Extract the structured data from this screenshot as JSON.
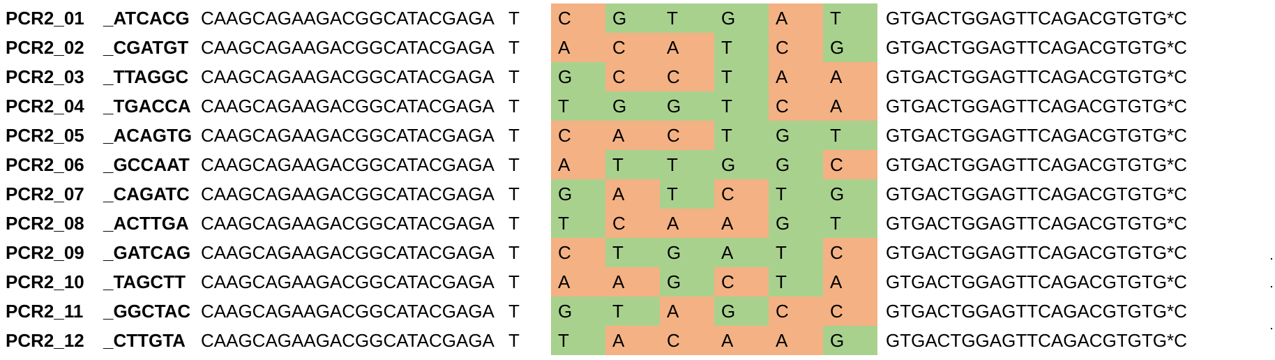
{
  "colors": {
    "match": "#a9d18e",
    "mismatch": "#f4b183"
  },
  "rows": [
    {
      "name": "PCR2_01",
      "index": "_ATCACG",
      "adapter5": "CAAGCAGAAGACGGCATACGAGA",
      "t": "T",
      "bases": [
        "C",
        "G",
        "T",
        "G",
        "A",
        "T"
      ],
      "colors": [
        "mismatch",
        "match",
        "match",
        "match",
        "mismatch",
        "match"
      ],
      "adapter3": "GTGACTGGAGTTCAGACGTGTG*C"
    },
    {
      "name": "PCR2_02",
      "index": "_CGATGT",
      "adapter5": "CAAGCAGAAGACGGCATACGAGA",
      "t": "T",
      "bases": [
        "A",
        "C",
        "A",
        "T",
        "C",
        "G"
      ],
      "colors": [
        "mismatch",
        "mismatch",
        "mismatch",
        "match",
        "mismatch",
        "match"
      ],
      "adapter3": "GTGACTGGAGTTCAGACGTGTG*C"
    },
    {
      "name": "PCR2_03",
      "index": "_TTAGGC",
      "adapter5": "CAAGCAGAAGACGGCATACGAGA",
      "t": "T",
      "bases": [
        "G",
        "C",
        "C",
        "T",
        "A",
        "A"
      ],
      "colors": [
        "match",
        "mismatch",
        "mismatch",
        "match",
        "mismatch",
        "mismatch"
      ],
      "adapter3": "GTGACTGGAGTTCAGACGTGTG*C"
    },
    {
      "name": "PCR2_04",
      "index": "_TGACCA",
      "adapter5": "CAAGCAGAAGACGGCATACGAGA",
      "t": "T",
      "bases": [
        "T",
        "G",
        "G",
        "T",
        "C",
        "A"
      ],
      "colors": [
        "match",
        "match",
        "match",
        "match",
        "mismatch",
        "mismatch"
      ],
      "adapter3": "GTGACTGGAGTTCAGACGTGTG*C"
    },
    {
      "name": "PCR2_05",
      "index": "_ACAGTG",
      "adapter5": "CAAGCAGAAGACGGCATACGAGA",
      "t": "T",
      "bases": [
        "C",
        "A",
        "C",
        "T",
        "G",
        "T"
      ],
      "colors": [
        "mismatch",
        "mismatch",
        "mismatch",
        "match",
        "match",
        "match"
      ],
      "adapter3": "GTGACTGGAGTTCAGACGTGTG*C"
    },
    {
      "name": "PCR2_06",
      "index": "_GCCAAT",
      "adapter5": "CAAGCAGAAGACGGCATACGAGA",
      "t": "T",
      "bases": [
        "A",
        "T",
        "T",
        "G",
        "G",
        "C"
      ],
      "colors": [
        "mismatch",
        "match",
        "match",
        "match",
        "match",
        "mismatch"
      ],
      "adapter3": "GTGACTGGAGTTCAGACGTGTG*C"
    },
    {
      "name": "PCR2_07",
      "index": "_CAGATC",
      "adapter5": "CAAGCAGAAGACGGCATACGAGA",
      "t": "T",
      "bases": [
        "G",
        "A",
        "T",
        "C",
        "T",
        "G"
      ],
      "colors": [
        "match",
        "mismatch",
        "match",
        "mismatch",
        "match",
        "match"
      ],
      "adapter3": "GTGACTGGAGTTCAGACGTGTG*C"
    },
    {
      "name": "PCR2_08",
      "index": "_ACTTGA",
      "adapter5": "CAAGCAGAAGACGGCATACGAGA",
      "t": "T",
      "bases": [
        "T",
        "C",
        "A",
        "A",
        "G",
        "T"
      ],
      "colors": [
        "match",
        "mismatch",
        "mismatch",
        "mismatch",
        "match",
        "match"
      ],
      "adapter3": "GTGACTGGAGTTCAGACGTGTG*C"
    },
    {
      "name": "PCR2_09",
      "index": "_GATCAG",
      "adapter5": "CAAGCAGAAGACGGCATACGAGA",
      "t": "T",
      "bases": [
        "C",
        "T",
        "G",
        "A",
        "T",
        "C"
      ],
      "colors": [
        "mismatch",
        "match",
        "match",
        "match",
        "match",
        "mismatch"
      ],
      "adapter3": "GTGACTGGAGTTCAGACGTGTG*C"
    },
    {
      "name": "PCR2_10",
      "index": "_TAGCTT",
      "adapter5": "CAAGCAGAAGACGGCATACGAGA",
      "t": "T",
      "bases": [
        "A",
        "A",
        "G",
        "C",
        "T",
        "A"
      ],
      "colors": [
        "mismatch",
        "mismatch",
        "match",
        "mismatch",
        "match",
        "mismatch"
      ],
      "adapter3": "GTGACTGGAGTTCAGACGTGTG*C"
    },
    {
      "name": "PCR2_11",
      "index": "_GGCTAC",
      "adapter5": "CAAGCAGAAGACGGCATACGAGA",
      "t": "T",
      "bases": [
        "G",
        "T",
        "A",
        "G",
        "C",
        "C"
      ],
      "colors": [
        "match",
        "match",
        "mismatch",
        "match",
        "mismatch",
        "mismatch"
      ],
      "adapter3": "GTGACTGGAGTTCAGACGTGTG*C"
    },
    {
      "name": "PCR2_12",
      "index": "_CTTGTA",
      "adapter5": "CAAGCAGAAGACGGCATACGAGA",
      "t": "T",
      "bases": [
        "T",
        "A",
        "C",
        "A",
        "A",
        "G"
      ],
      "colors": [
        "match",
        "mismatch",
        "mismatch",
        "mismatch",
        "mismatch",
        "match"
      ],
      "adapter3": "GTGACTGGAGTTCAGACGTGTG*C"
    }
  ]
}
